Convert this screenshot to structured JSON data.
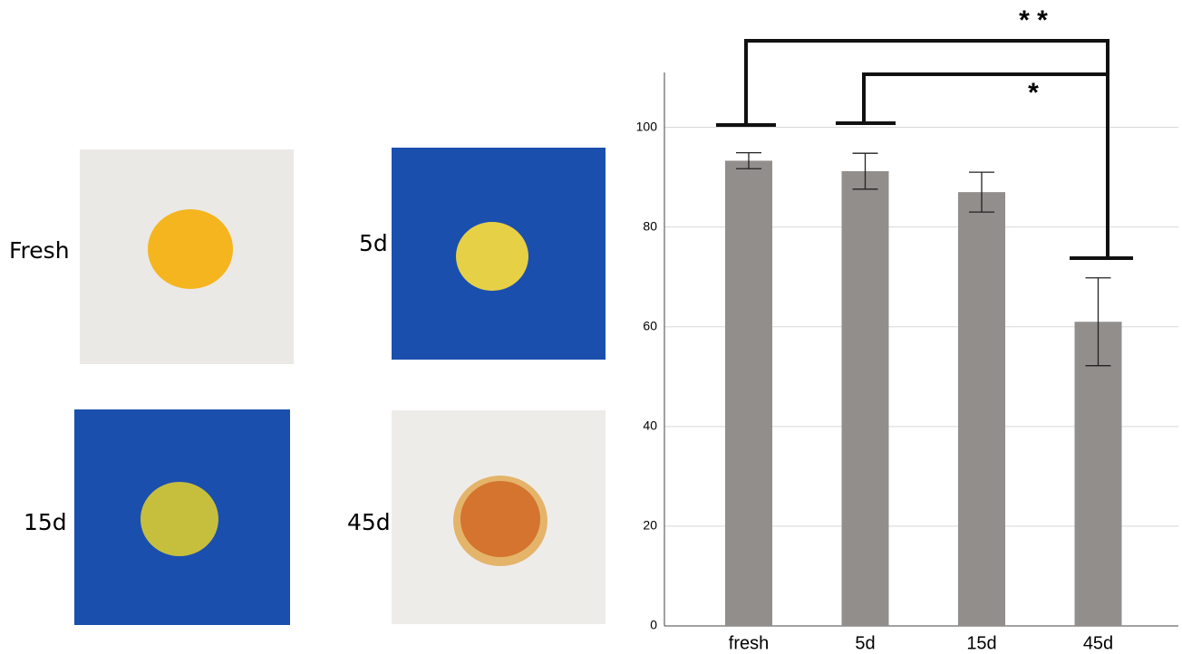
{
  "panels": [
    {
      "label": "Fresh"
    },
    {
      "label": "5d"
    },
    {
      "label": "15d"
    },
    {
      "label": "45d"
    }
  ],
  "chart_data": {
    "type": "bar",
    "categories": [
      "fresh",
      "5d",
      "15d",
      "45d"
    ],
    "values": [
      93.3,
      91.2,
      87.0,
      61.0
    ],
    "errors": [
      1.6,
      3.6,
      4.0,
      8.8
    ],
    "color": "#928e8c",
    "ylim": [
      0,
      111
    ],
    "yticks": [
      0,
      20,
      40,
      60,
      80,
      100
    ],
    "grid": true,
    "annotations": [
      "* *",
      "*"
    ]
  }
}
